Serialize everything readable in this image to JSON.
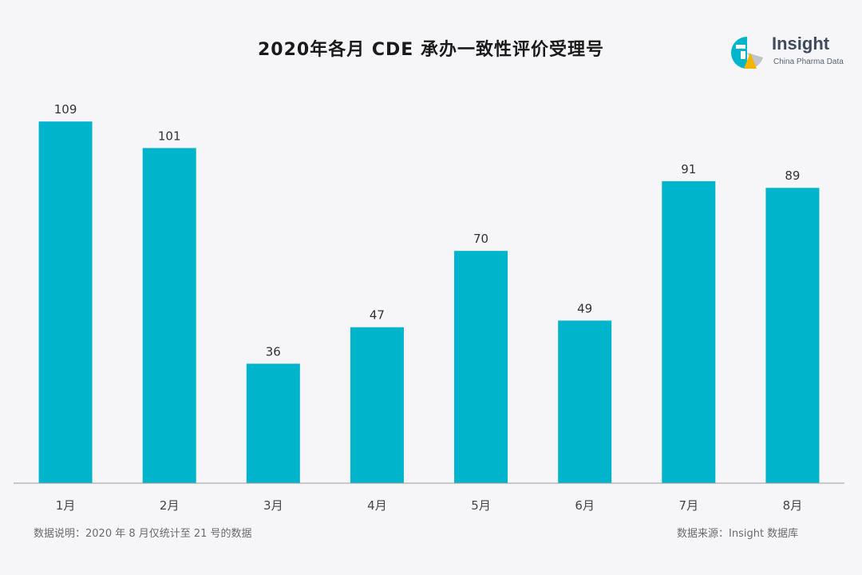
{
  "chart_data": {
    "type": "bar",
    "title": "2020年各月 CDE 承办一致性评价受理号",
    "categories": [
      "1月",
      "2月",
      "3月",
      "4月",
      "5月",
      "6月",
      "7月",
      "8月"
    ],
    "values": [
      109,
      101,
      36,
      47,
      70,
      49,
      91,
      89
    ],
    "xlabel": "",
    "ylabel": "",
    "ylim": [
      0,
      110
    ],
    "grid": false,
    "data_labels": true,
    "bar_color": "#00b4cc",
    "axis_color": "#9a9a9a"
  },
  "logo": {
    "name": "Insight",
    "subtitle": "China Pharma Data",
    "colors": [
      "#00b4cc",
      "#f5b400",
      "#c0c4ca"
    ]
  },
  "footer": {
    "note": "数据说明：2020 年 8 月仅统计至 21 号的数据",
    "source": "数据来源：Insight 数据库"
  }
}
